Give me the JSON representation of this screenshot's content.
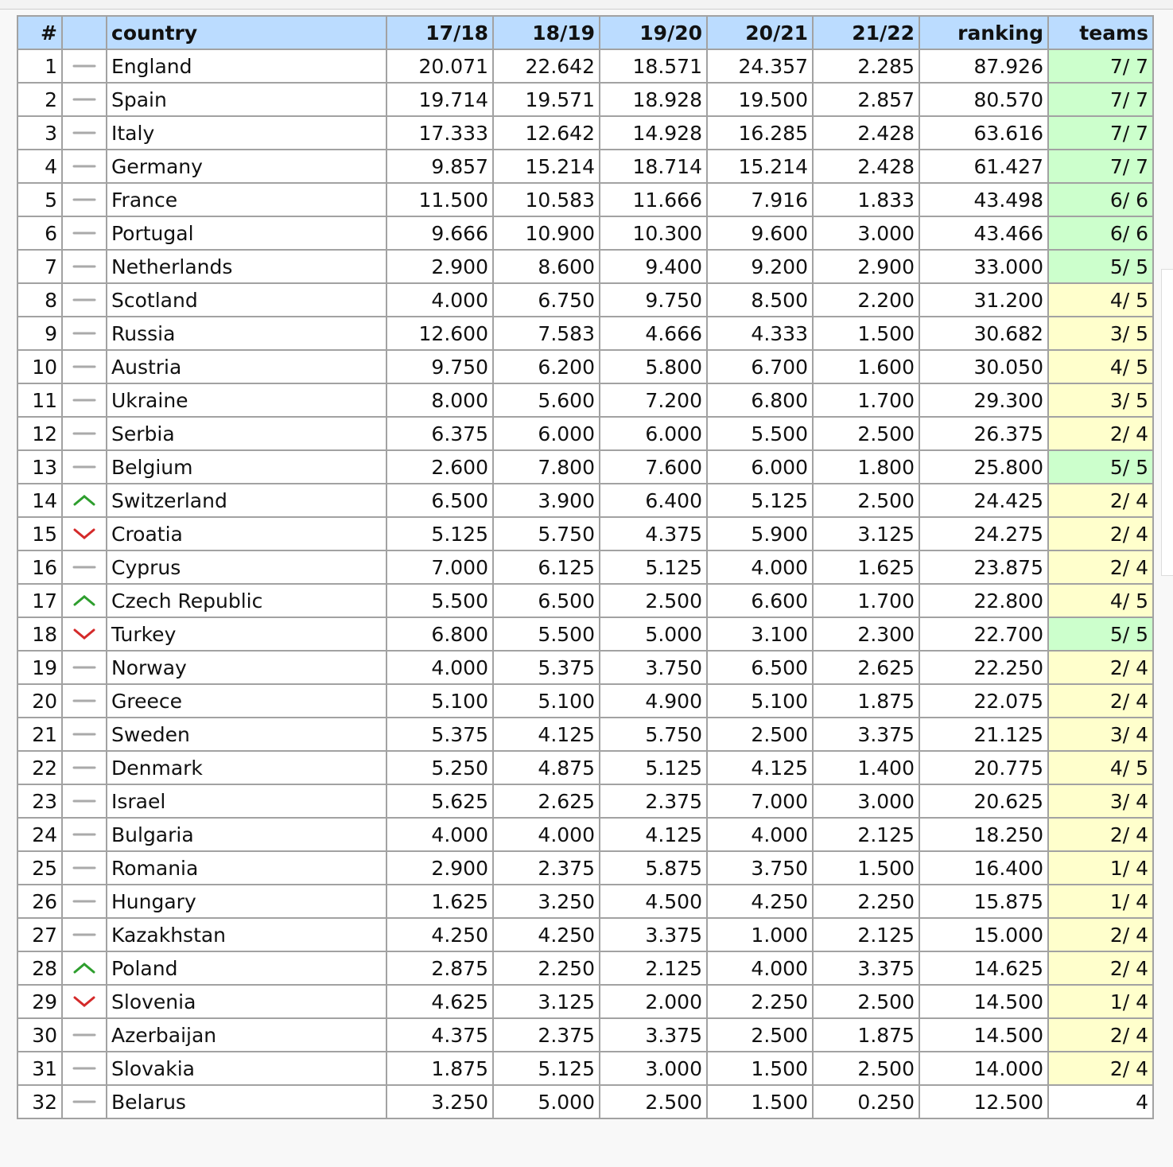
{
  "columns": [
    "#",
    "",
    "country",
    "17/18",
    "18/19",
    "19/20",
    "20/21",
    "21/22",
    "ranking",
    "teams"
  ],
  "colors": {
    "header_bg": "#bbdcff",
    "teams_full": "#ccffcc",
    "teams_partial": "#ffffcc",
    "trend_up": "#2e9e2e",
    "trend_down": "#d42a2a",
    "trend_same": "#aaaaaa"
  },
  "rows": [
    {
      "rank": "1",
      "trend": "same",
      "country": "England",
      "y1": "20.071",
      "y2": "22.642",
      "y3": "18.571",
      "y4": "24.357",
      "y5": "2.285",
      "ranking": "87.926",
      "teams": "7/ 7",
      "teams_status": "green"
    },
    {
      "rank": "2",
      "trend": "same",
      "country": "Spain",
      "y1": "19.714",
      "y2": "19.571",
      "y3": "18.928",
      "y4": "19.500",
      "y5": "2.857",
      "ranking": "80.570",
      "teams": "7/ 7",
      "teams_status": "green"
    },
    {
      "rank": "3",
      "trend": "same",
      "country": "Italy",
      "y1": "17.333",
      "y2": "12.642",
      "y3": "14.928",
      "y4": "16.285",
      "y5": "2.428",
      "ranking": "63.616",
      "teams": "7/ 7",
      "teams_status": "green"
    },
    {
      "rank": "4",
      "trend": "same",
      "country": "Germany",
      "y1": "9.857",
      "y2": "15.214",
      "y3": "18.714",
      "y4": "15.214",
      "y5": "2.428",
      "ranking": "61.427",
      "teams": "7/ 7",
      "teams_status": "green"
    },
    {
      "rank": "5",
      "trend": "same",
      "country": "France",
      "y1": "11.500",
      "y2": "10.583",
      "y3": "11.666",
      "y4": "7.916",
      "y5": "1.833",
      "ranking": "43.498",
      "teams": "6/ 6",
      "teams_status": "green"
    },
    {
      "rank": "6",
      "trend": "same",
      "country": "Portugal",
      "y1": "9.666",
      "y2": "10.900",
      "y3": "10.300",
      "y4": "9.600",
      "y5": "3.000",
      "ranking": "43.466",
      "teams": "6/ 6",
      "teams_status": "green"
    },
    {
      "rank": "7",
      "trend": "same",
      "country": "Netherlands",
      "y1": "2.900",
      "y2": "8.600",
      "y3": "9.400",
      "y4": "9.200",
      "y5": "2.900",
      "ranking": "33.000",
      "teams": "5/ 5",
      "teams_status": "green"
    },
    {
      "rank": "8",
      "trend": "same",
      "country": "Scotland",
      "y1": "4.000",
      "y2": "6.750",
      "y3": "9.750",
      "y4": "8.500",
      "y5": "2.200",
      "ranking": "31.200",
      "teams": "4/ 5",
      "teams_status": "yellow"
    },
    {
      "rank": "9",
      "trend": "same",
      "country": "Russia",
      "y1": "12.600",
      "y2": "7.583",
      "y3": "4.666",
      "y4": "4.333",
      "y5": "1.500",
      "ranking": "30.682",
      "teams": "3/ 5",
      "teams_status": "yellow"
    },
    {
      "rank": "10",
      "trend": "same",
      "country": "Austria",
      "y1": "9.750",
      "y2": "6.200",
      "y3": "5.800",
      "y4": "6.700",
      "y5": "1.600",
      "ranking": "30.050",
      "teams": "4/ 5",
      "teams_status": "yellow"
    },
    {
      "rank": "11",
      "trend": "same",
      "country": "Ukraine",
      "y1": "8.000",
      "y2": "5.600",
      "y3": "7.200",
      "y4": "6.800",
      "y5": "1.700",
      "ranking": "29.300",
      "teams": "3/ 5",
      "teams_status": "yellow"
    },
    {
      "rank": "12",
      "trend": "same",
      "country": "Serbia",
      "y1": "6.375",
      "y2": "6.000",
      "y3": "6.000",
      "y4": "5.500",
      "y5": "2.500",
      "ranking": "26.375",
      "teams": "2/ 4",
      "teams_status": "yellow"
    },
    {
      "rank": "13",
      "trend": "same",
      "country": "Belgium",
      "y1": "2.600",
      "y2": "7.800",
      "y3": "7.600",
      "y4": "6.000",
      "y5": "1.800",
      "ranking": "25.800",
      "teams": "5/ 5",
      "teams_status": "green"
    },
    {
      "rank": "14",
      "trend": "up",
      "country": "Switzerland",
      "y1": "6.500",
      "y2": "3.900",
      "y3": "6.400",
      "y4": "5.125",
      "y5": "2.500",
      "ranking": "24.425",
      "teams": "2/ 4",
      "teams_status": "yellow"
    },
    {
      "rank": "15",
      "trend": "down",
      "country": "Croatia",
      "y1": "5.125",
      "y2": "5.750",
      "y3": "4.375",
      "y4": "5.900",
      "y5": "3.125",
      "ranking": "24.275",
      "teams": "2/ 4",
      "teams_status": "yellow"
    },
    {
      "rank": "16",
      "trend": "same",
      "country": "Cyprus",
      "y1": "7.000",
      "y2": "6.125",
      "y3": "5.125",
      "y4": "4.000",
      "y5": "1.625",
      "ranking": "23.875",
      "teams": "2/ 4",
      "teams_status": "yellow"
    },
    {
      "rank": "17",
      "trend": "up",
      "country": "Czech Republic",
      "y1": "5.500",
      "y2": "6.500",
      "y3": "2.500",
      "y4": "6.600",
      "y5": "1.700",
      "ranking": "22.800",
      "teams": "4/ 5",
      "teams_status": "yellow"
    },
    {
      "rank": "18",
      "trend": "down",
      "country": "Turkey",
      "y1": "6.800",
      "y2": "5.500",
      "y3": "5.000",
      "y4": "3.100",
      "y5": "2.300",
      "ranking": "22.700",
      "teams": "5/ 5",
      "teams_status": "green"
    },
    {
      "rank": "19",
      "trend": "same",
      "country": "Norway",
      "y1": "4.000",
      "y2": "5.375",
      "y3": "3.750",
      "y4": "6.500",
      "y5": "2.625",
      "ranking": "22.250",
      "teams": "2/ 4",
      "teams_status": "yellow"
    },
    {
      "rank": "20",
      "trend": "same",
      "country": "Greece",
      "y1": "5.100",
      "y2": "5.100",
      "y3": "4.900",
      "y4": "5.100",
      "y5": "1.875",
      "ranking": "22.075",
      "teams": "2/ 4",
      "teams_status": "yellow"
    },
    {
      "rank": "21",
      "trend": "same",
      "country": "Sweden",
      "y1": "5.375",
      "y2": "4.125",
      "y3": "5.750",
      "y4": "2.500",
      "y5": "3.375",
      "ranking": "21.125",
      "teams": "3/ 4",
      "teams_status": "yellow"
    },
    {
      "rank": "22",
      "trend": "same",
      "country": "Denmark",
      "y1": "5.250",
      "y2": "4.875",
      "y3": "5.125",
      "y4": "4.125",
      "y5": "1.400",
      "ranking": "20.775",
      "teams": "4/ 5",
      "teams_status": "yellow"
    },
    {
      "rank": "23",
      "trend": "same",
      "country": "Israel",
      "y1": "5.625",
      "y2": "2.625",
      "y3": "2.375",
      "y4": "7.000",
      "y5": "3.000",
      "ranking": "20.625",
      "teams": "3/ 4",
      "teams_status": "yellow"
    },
    {
      "rank": "24",
      "trend": "same",
      "country": "Bulgaria",
      "y1": "4.000",
      "y2": "4.000",
      "y3": "4.125",
      "y4": "4.000",
      "y5": "2.125",
      "ranking": "18.250",
      "teams": "2/ 4",
      "teams_status": "yellow"
    },
    {
      "rank": "25",
      "trend": "same",
      "country": "Romania",
      "y1": "2.900",
      "y2": "2.375",
      "y3": "5.875",
      "y4": "3.750",
      "y5": "1.500",
      "ranking": "16.400",
      "teams": "1/ 4",
      "teams_status": "yellow"
    },
    {
      "rank": "26",
      "trend": "same",
      "country": "Hungary",
      "y1": "1.625",
      "y2": "3.250",
      "y3": "4.500",
      "y4": "4.250",
      "y5": "2.250",
      "ranking": "15.875",
      "teams": "1/ 4",
      "teams_status": "yellow"
    },
    {
      "rank": "27",
      "trend": "same",
      "country": "Kazakhstan",
      "y1": "4.250",
      "y2": "4.250",
      "y3": "3.375",
      "y4": "1.000",
      "y5": "2.125",
      "ranking": "15.000",
      "teams": "2/ 4",
      "teams_status": "yellow"
    },
    {
      "rank": "28",
      "trend": "up",
      "country": "Poland",
      "y1": "2.875",
      "y2": "2.250",
      "y3": "2.125",
      "y4": "4.000",
      "y5": "3.375",
      "ranking": "14.625",
      "teams": "2/ 4",
      "teams_status": "yellow"
    },
    {
      "rank": "29",
      "trend": "down",
      "country": "Slovenia",
      "y1": "4.625",
      "y2": "3.125",
      "y3": "2.000",
      "y4": "2.250",
      "y5": "2.500",
      "ranking": "14.500",
      "teams": "1/ 4",
      "teams_status": "yellow"
    },
    {
      "rank": "30",
      "trend": "same",
      "country": "Azerbaijan",
      "y1": "4.375",
      "y2": "2.375",
      "y3": "3.375",
      "y4": "2.500",
      "y5": "1.875",
      "ranking": "14.500",
      "teams": "2/ 4",
      "teams_status": "yellow"
    },
    {
      "rank": "31",
      "trend": "same",
      "country": "Slovakia",
      "y1": "1.875",
      "y2": "5.125",
      "y3": "3.000",
      "y4": "1.500",
      "y5": "2.500",
      "ranking": "14.000",
      "teams": "2/ 4",
      "teams_status": "yellow"
    },
    {
      "rank": "32",
      "trend": "same",
      "country": "Belarus",
      "y1": "3.250",
      "y2": "5.000",
      "y3": "2.500",
      "y4": "1.500",
      "y5": "0.250",
      "ranking": "12.500",
      "teams": "4",
      "teams_status": "none"
    }
  ]
}
